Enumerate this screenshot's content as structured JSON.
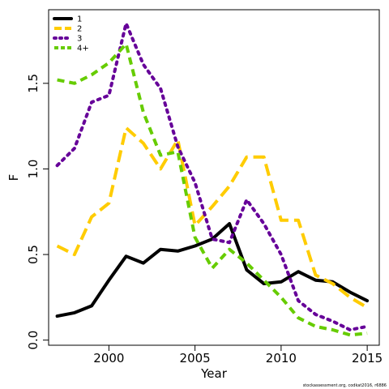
{
  "chart_data": {
    "type": "line",
    "xlabel": "Year",
    "ylabel": "F",
    "xlim": [
      1996.5,
      2015.7
    ],
    "ylim": [
      -0.03,
      1.93
    ],
    "x_ticks": [
      2000,
      2005,
      2010,
      2015
    ],
    "y_ticks": [
      0.0,
      0.5,
      1.0,
      1.5
    ],
    "x_tick_labels": [
      "2000",
      "2005",
      "2010",
      "2015"
    ],
    "y_tick_labels": [
      "0.0",
      "0.5",
      "1.0",
      "1.5"
    ],
    "grid": false,
    "legend_position": "top-left",
    "x": [
      1997,
      1998,
      1999,
      2000,
      2001,
      2002,
      2003,
      2004,
      2005,
      2006,
      2007,
      2008,
      2009,
      2010,
      2011,
      2012,
      2013,
      2014,
      2015
    ],
    "series": [
      {
        "name": "1",
        "color": "#000000",
        "dash": "solid",
        "values": [
          0.14,
          0.16,
          0.2,
          0.35,
          0.49,
          0.45,
          0.53,
          0.52,
          0.55,
          0.59,
          0.68,
          0.41,
          0.33,
          0.34,
          0.4,
          0.35,
          0.34,
          0.28,
          0.23
        ]
      },
      {
        "name": "2",
        "color": "#ffcc00",
        "dash": "long",
        "values": [
          0.55,
          0.5,
          0.72,
          0.8,
          1.24,
          1.15,
          1.0,
          1.17,
          0.67,
          0.78,
          0.9,
          1.07,
          1.07,
          0.7,
          0.7,
          0.38,
          0.33,
          0.25,
          0.19
        ]
      },
      {
        "name": "3",
        "color": "#660099",
        "dash": "dotted",
        "values": [
          1.02,
          1.12,
          1.39,
          1.43,
          1.85,
          1.61,
          1.47,
          1.13,
          0.92,
          0.59,
          0.57,
          0.82,
          0.68,
          0.5,
          0.23,
          0.15,
          0.11,
          0.06,
          0.08
        ]
      },
      {
        "name": "4+",
        "color": "#66cc00",
        "dash": "short",
        "values": [
          1.52,
          1.5,
          1.55,
          1.62,
          1.73,
          1.33,
          1.08,
          1.1,
          0.6,
          0.42,
          0.53,
          0.45,
          0.35,
          0.25,
          0.13,
          0.08,
          0.06,
          0.03,
          0.04
        ]
      }
    ],
    "credit": "stockassessment.org, codkat2016, r6886"
  }
}
